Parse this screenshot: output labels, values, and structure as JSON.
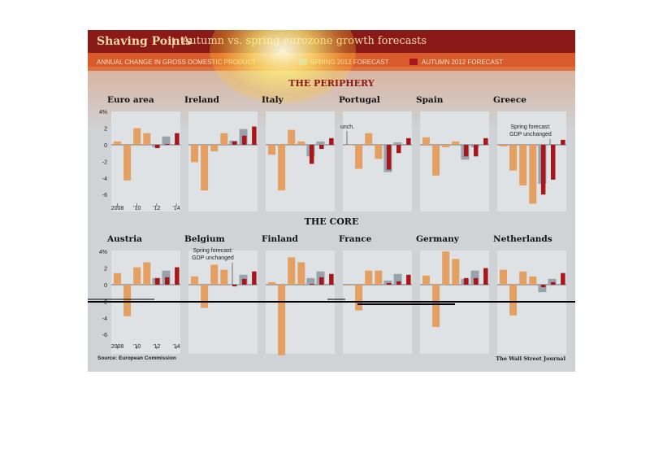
{
  "header": {
    "title": "Shaving Points",
    "separator": "|",
    "subtitle": "Autumn vs. spring eurozone growth forecasts"
  },
  "legend": {
    "description": "ANNUAL CHANGE IN GROSS DOMESTIC PRODUCT",
    "spring_label": "SPRING 2012 FORECAST",
    "autumn_label": "AUTUMN 2012 FORECAST"
  },
  "colors": {
    "actual": "#e3a062",
    "spring": "#97a4ae",
    "autumn": "#a8171b",
    "title_bar": "#8a1a17",
    "legend_bar": "#d95a2a",
    "panel": "#dfe2e4",
    "background": "#cfd3d6"
  },
  "sections": {
    "periphery": "THE PERIPHERY",
    "core": "THE CORE"
  },
  "footer": {
    "source": "Source: European Commission",
    "credit": "The Wall Street Journal"
  },
  "axis": {
    "y_ticks": [
      "4%",
      "2",
      "0",
      "-2",
      "-4",
      "-6"
    ],
    "x_ticks": [
      "2008",
      "'10",
      "'12",
      "'14"
    ]
  },
  "chart_data": {
    "type": "bar",
    "years": [
      2008,
      2009,
      2010,
      2011,
      2012,
      2013,
      2014
    ],
    "ylim": [
      -6,
      4
    ],
    "unit": "%",
    "periphery": [
      {
        "country": "Euro area",
        "actual": [
          0.4,
          -4.3,
          2.0,
          1.4
        ],
        "spring": [
          -0.3,
          1.0,
          null
        ],
        "autumn": [
          -0.4,
          0.1,
          1.4
        ]
      },
      {
        "country": "Ireland",
        "actual": [
          -2.1,
          -5.5,
          -0.8,
          1.4
        ],
        "spring": [
          0.5,
          1.9,
          null
        ],
        "autumn": [
          0.4,
          1.1,
          2.2
        ]
      },
      {
        "country": "Italy",
        "actual": [
          -1.2,
          -5.5,
          1.8,
          0.4
        ],
        "spring": [
          -1.4,
          0.4,
          null
        ],
        "autumn": [
          -2.3,
          -0.5,
          0.8
        ]
      },
      {
        "country": "Portugal",
        "actual": [
          0.0,
          -2.9,
          1.4,
          -1.7
        ],
        "spring": [
          -3.3,
          0.3,
          null
        ],
        "autumn": [
          -3.0,
          -1.0,
          0.8
        ]
      },
      {
        "country": "Spain",
        "actual": [
          0.9,
          -3.7,
          -0.3,
          0.4
        ],
        "spring": [
          -1.8,
          -0.3,
          null
        ],
        "autumn": [
          -1.4,
          -1.4,
          0.8
        ]
      },
      {
        "country": "Greece",
        "actual": [
          -0.2,
          -3.1,
          -4.9,
          -7.1
        ],
        "spring": [
          -4.7,
          0.0,
          null
        ],
        "autumn": [
          -6.0,
          -4.2,
          0.6
        ]
      }
    ],
    "core": [
      {
        "country": "Austria",
        "actual": [
          1.4,
          -3.8,
          2.1,
          2.7
        ],
        "spring": [
          0.8,
          1.7,
          null
        ],
        "autumn": [
          0.8,
          0.9,
          2.1
        ]
      },
      {
        "country": "Belgium",
        "actual": [
          1.0,
          -2.8,
          2.4,
          1.8
        ],
        "spring": [
          0.0,
          1.2,
          null
        ],
        "autumn": [
          -0.2,
          0.7,
          1.6
        ]
      },
      {
        "country": "Finland",
        "actual": [
          0.3,
          -8.5,
          3.3,
          2.7
        ],
        "spring": [
          0.8,
          1.6,
          null
        ],
        "autumn": [
          0.1,
          0.9,
          1.3
        ]
      },
      {
        "country": "France",
        "actual": [
          -0.1,
          -3.1,
          1.7,
          1.7
        ],
        "spring": [
          0.5,
          1.3,
          null
        ],
        "autumn": [
          0.2,
          0.4,
          1.2
        ]
      },
      {
        "country": "Germany",
        "actual": [
          1.1,
          -5.1,
          4.0,
          3.1
        ],
        "spring": [
          0.7,
          1.7,
          null
        ],
        "autumn": [
          0.8,
          0.8,
          2.0
        ]
      },
      {
        "country": "Netherlands",
        "actual": [
          1.8,
          -3.7,
          1.6,
          1.0
        ],
        "spring": [
          -0.9,
          0.7,
          null
        ],
        "autumn": [
          -0.3,
          0.3,
          1.4
        ]
      }
    ],
    "annotations": [
      {
        "country": "Portugal",
        "text": "unch."
      },
      {
        "country": "Greece",
        "lines": [
          "Spring forecast:",
          "GDP unchanged"
        ]
      },
      {
        "country": "Belgium",
        "lines": [
          "Spring forecast:",
          "GDP unchanged"
        ]
      }
    ]
  }
}
